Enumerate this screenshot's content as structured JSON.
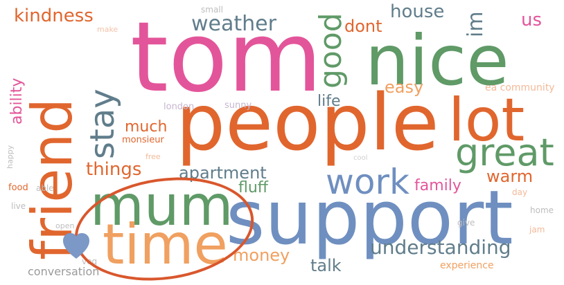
{
  "words": {
    "tom": "tom",
    "nice": "nice",
    "people": "people",
    "lot": "lot",
    "support": "support",
    "mum": "mum",
    "time": "time",
    "friend": "friend",
    "great": "great",
    "work": "work",
    "good": "good",
    "stay": "stay",
    "kindness": "kindness",
    "weather": "weather",
    "house": "house",
    "dont": "dont",
    "im": "im",
    "us": "us",
    "easy": "easy",
    "life": "life",
    "ability": "ability",
    "much": "much",
    "monsieur": "monsieur",
    "things": "things",
    "apartment": "apartment",
    "fluff": "fluff",
    "family": "family",
    "warm": "warm",
    "understanding": "understanding",
    "money": "money",
    "talk": "talk",
    "experience": "experience",
    "conversation": "conversation",
    "london": "london",
    "sunny": "sunny",
    "small": "small",
    "make": "make",
    "ea_community": "ea community",
    "free": "free",
    "happy": "happy",
    "food": "food",
    "able": "able",
    "live": "live",
    "open": "open",
    "veg": "veg",
    "day": "day",
    "home": "home",
    "give": "give",
    "jam": "jam",
    "cool": "cool"
  },
  "colors": {
    "orange": "#e0662e",
    "green": "#5f9a67",
    "pink": "#e3559a",
    "blue": "#6f8fc0",
    "slate": "#607d8b",
    "annotation": "#d9572d",
    "heart": "#7b98c6"
  },
  "annotation": {
    "shape": "ellipse",
    "icon": "heart-icon"
  }
}
